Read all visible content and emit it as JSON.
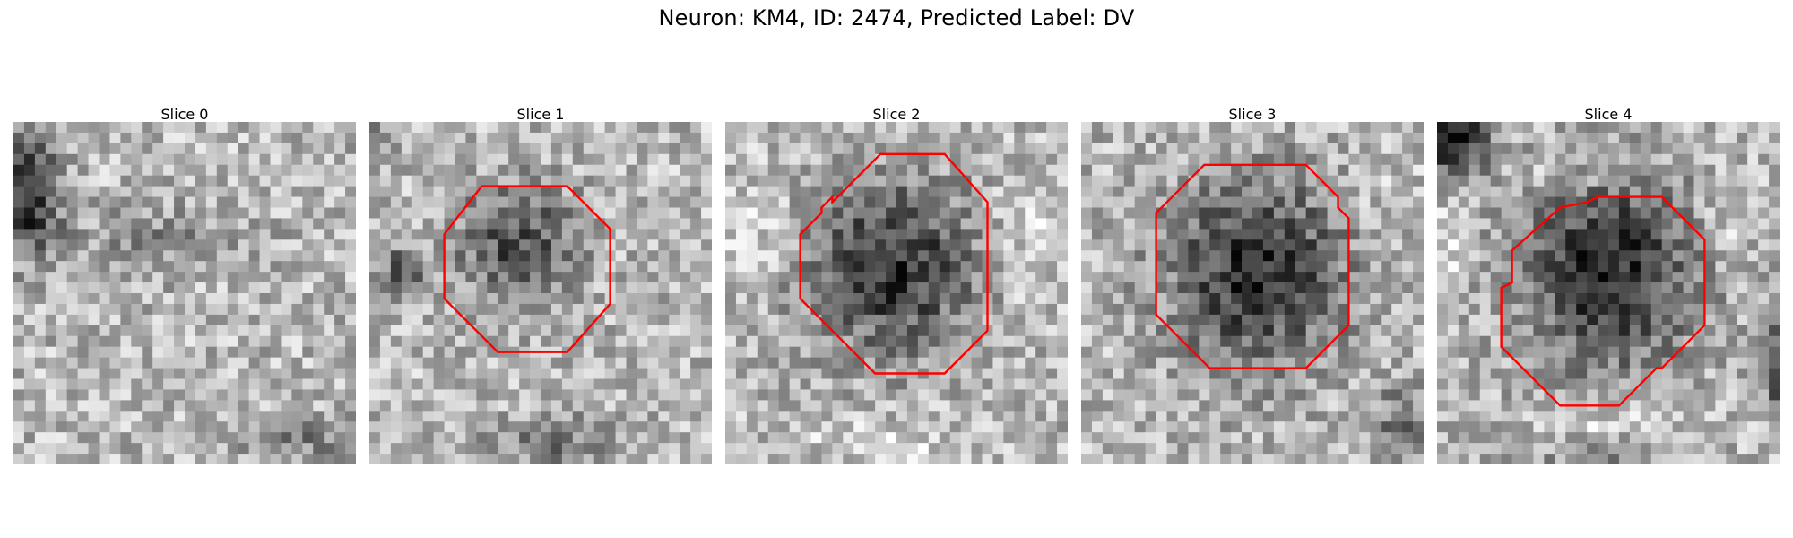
{
  "figure": {
    "title": "Neuron: KM4, ID: 2474, Predicted Label: DV",
    "contour_color": "#ff0000",
    "colormap": "gray",
    "slices": [
      {
        "label": "Slice 0",
        "has_contour": false
      },
      {
        "label": "Slice 1",
        "has_contour": true
      },
      {
        "label": "Slice 2",
        "has_contour": true
      },
      {
        "label": "Slice 3",
        "has_contour": true
      },
      {
        "label": "Slice 4",
        "has_contour": true
      }
    ]
  }
}
